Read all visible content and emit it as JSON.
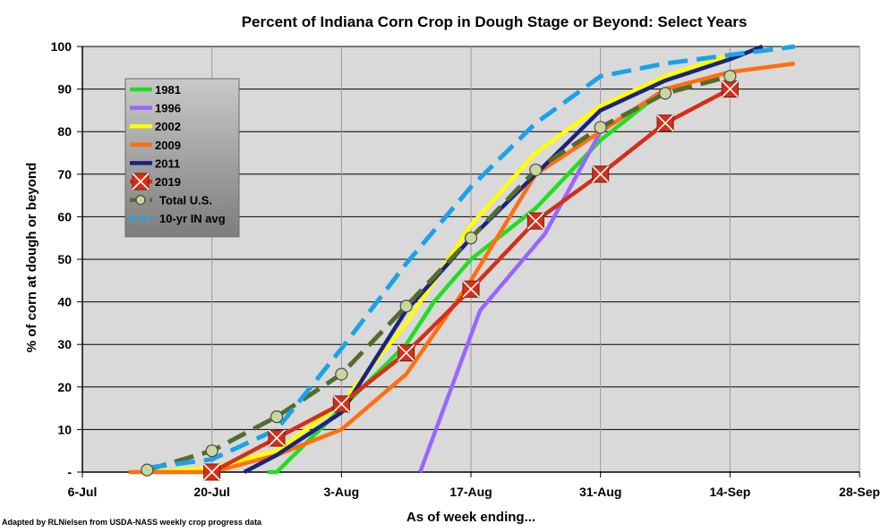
{
  "chart_data": {
    "type": "line",
    "title": "Percent of Indiana Corn Crop in Dough Stage or Beyond: Select Years",
    "xlabel": "As of week ending...",
    "ylabel": "% of corn at dough or beyond",
    "credit": "Adapted by RLNielsen from USDA-NASS weekly crop progress data",
    "x_unit": "days after 6-Jul",
    "xlim": [
      0,
      84
    ],
    "ylim": [
      0,
      100
    ],
    "x_ticks": [
      {
        "value": 0,
        "label": "6-Jul"
      },
      {
        "value": 14,
        "label": "20-Jul"
      },
      {
        "value": 28,
        "label": "3-Aug"
      },
      {
        "value": 42,
        "label": "17-Aug"
      },
      {
        "value": 56,
        "label": "31-Aug"
      },
      {
        "value": 70,
        "label": "14-Sep"
      },
      {
        "value": 84,
        "label": "28-Sep"
      }
    ],
    "y_ticks": [
      {
        "value": 0,
        "label": "-"
      },
      {
        "value": 10,
        "label": "10"
      },
      {
        "value": 20,
        "label": "20"
      },
      {
        "value": 30,
        "label": "30"
      },
      {
        "value": 40,
        "label": "40"
      },
      {
        "value": 50,
        "label": "50"
      },
      {
        "value": 60,
        "label": "60"
      },
      {
        "value": 70,
        "label": "70"
      },
      {
        "value": 80,
        "label": "80"
      },
      {
        "value": 90,
        "label": "90"
      },
      {
        "value": 100,
        "label": "100"
      }
    ],
    "grid": true,
    "legend_position": "upper-left",
    "series": [
      {
        "name": "1981",
        "color": "#22dd22",
        "dash": false,
        "marker": "none",
        "x": [
          20,
          21,
          28,
          35,
          38,
          42,
          49,
          56,
          63
        ],
        "y": [
          0,
          0,
          15,
          30,
          40,
          50,
          62,
          78,
          90
        ]
      },
      {
        "name": "1996",
        "color": "#9966ff",
        "dash": false,
        "marker": "none",
        "x": [
          36.5,
          43,
          50,
          56,
          63
        ],
        "y": [
          0,
          38,
          56,
          80,
          90
        ]
      },
      {
        "name": "2002",
        "color": "#ffff00",
        "dash": false,
        "marker": "none",
        "x": [
          7,
          14,
          21,
          28,
          35,
          42,
          49,
          56,
          63,
          70
        ],
        "y": [
          0,
          1,
          5,
          16,
          35,
          58,
          75,
          86,
          93,
          98
        ]
      },
      {
        "name": "2009",
        "color": "#ff6f10",
        "dash": false,
        "marker": "none",
        "x": [
          5,
          14,
          21,
          28,
          35,
          42,
          49,
          56,
          63,
          70,
          77
        ],
        "y": [
          0,
          0,
          4,
          10,
          23,
          45,
          70,
          80,
          90,
          94,
          96
        ]
      },
      {
        "name": "2011",
        "color": "#1a237e",
        "dash": false,
        "marker": "none",
        "x": [
          17.5,
          21,
          28,
          35,
          42,
          49,
          56,
          63,
          70,
          73.5
        ],
        "y": [
          0,
          4,
          14,
          38,
          55,
          70,
          85,
          92,
          97,
          100
        ]
      },
      {
        "name": "2019",
        "color": "#d32f1a",
        "dash": false,
        "marker": "x-square",
        "x": [
          14,
          21,
          28,
          35,
          42,
          49,
          56,
          63,
          70
        ],
        "y": [
          0,
          8,
          16,
          28,
          43,
          59,
          70,
          82,
          90
        ]
      },
      {
        "name": "Total U.S.",
        "color": "#556b2f",
        "dash": true,
        "marker": "circle",
        "x": [
          7,
          14,
          21,
          28,
          35,
          42,
          49,
          56,
          63,
          70
        ],
        "y": [
          0.5,
          5,
          13,
          23,
          39,
          55,
          71,
          81,
          89,
          93
        ]
      },
      {
        "name": "10-yr IN avg",
        "color": "#1aa3e8",
        "dash": true,
        "marker": "none",
        "x": [
          7,
          14,
          21,
          28,
          35,
          42,
          49,
          56,
          63,
          70,
          77
        ],
        "y": [
          1,
          3,
          10,
          29,
          49,
          67,
          82,
          93,
          96,
          98,
          100
        ]
      }
    ]
  }
}
